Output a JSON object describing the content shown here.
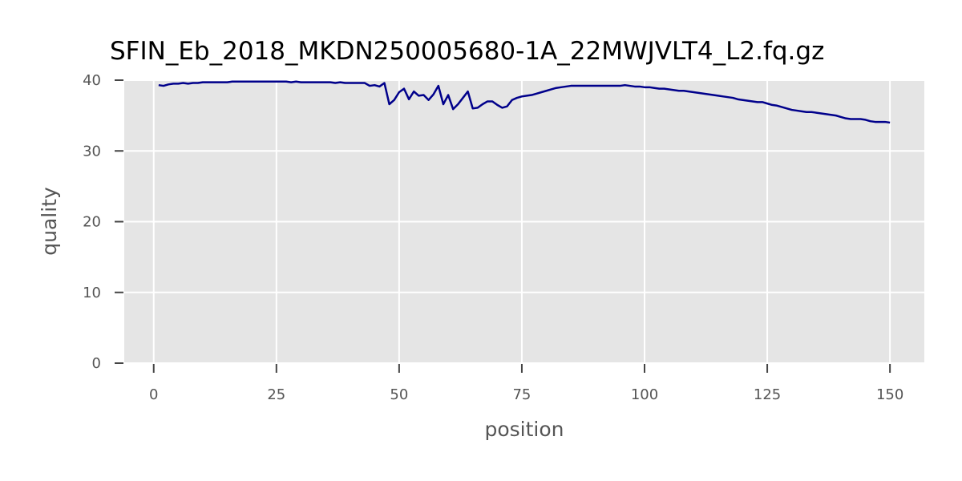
{
  "chart_data": {
    "type": "line",
    "title": "SFIN_Eb_2018_MKDN250005680-1A_22MWJVLT4_L2.fq.gz",
    "xlabel": "position",
    "ylabel": "quality",
    "xlim": [
      -6,
      157
    ],
    "ylim": [
      0,
      40
    ],
    "xticks": [
      0,
      25,
      50,
      75,
      100,
      125,
      150
    ],
    "yticks": [
      0,
      10,
      20,
      30,
      40
    ],
    "grid": true,
    "legend": "none",
    "line_color": "#00008b",
    "panel_color": "#e5e5e5",
    "series": [
      {
        "x": [
          1,
          2,
          3,
          4,
          5,
          6,
          7,
          8,
          9,
          10,
          11,
          12,
          13,
          14,
          15,
          16,
          17,
          18,
          19,
          20,
          21,
          22,
          23,
          24,
          25,
          26,
          27,
          28,
          29,
          30,
          31,
          32,
          33,
          34,
          35,
          36,
          37,
          38,
          39,
          40,
          41,
          42,
          43,
          44,
          45,
          46,
          47,
          48,
          49,
          50,
          51,
          52,
          53,
          54,
          55,
          56,
          57,
          58,
          59,
          60,
          61,
          62,
          63,
          64,
          65,
          66,
          67,
          68,
          69,
          70,
          71,
          72,
          73,
          74,
          75,
          76,
          77,
          78,
          79,
          80,
          81,
          82,
          83,
          84,
          85,
          86,
          87,
          88,
          89,
          90,
          91,
          92,
          93,
          94,
          95,
          96,
          97,
          98,
          99,
          100,
          101,
          102,
          103,
          104,
          105,
          106,
          107,
          108,
          109,
          110,
          111,
          112,
          113,
          114,
          115,
          116,
          117,
          118,
          119,
          120,
          121,
          122,
          123,
          124,
          125,
          126,
          127,
          128,
          129,
          130,
          131,
          132,
          133,
          134,
          135,
          136,
          137,
          138,
          139,
          140,
          141,
          142,
          143,
          144,
          145,
          146,
          147,
          148,
          149,
          150
        ],
        "y": [
          39.3,
          39.2,
          39.4,
          39.5,
          39.5,
          39.6,
          39.5,
          39.6,
          39.6,
          39.7,
          39.7,
          39.7,
          39.7,
          39.7,
          39.7,
          39.8,
          39.8,
          39.8,
          39.8,
          39.8,
          39.8,
          39.8,
          39.8,
          39.8,
          39.8,
          39.8,
          39.8,
          39.7,
          39.8,
          39.7,
          39.7,
          39.7,
          39.7,
          39.7,
          39.7,
          39.7,
          39.6,
          39.7,
          39.6,
          39.6,
          39.6,
          39.6,
          39.6,
          39.2,
          39.3,
          39.1,
          39.6,
          36.6,
          37.2,
          38.3,
          38.8,
          37.3,
          38.4,
          37.8,
          37.9,
          37.2,
          38.0,
          39.2,
          36.6,
          37.9,
          35.9,
          36.6,
          37.5,
          38.4,
          36.0,
          36.1,
          36.6,
          37.0,
          37.0,
          36.5,
          36.1,
          36.3,
          37.2,
          37.5,
          37.7,
          37.8,
          37.9,
          38.1,
          38.3,
          38.5,
          38.7,
          38.9,
          39.0,
          39.1,
          39.2,
          39.2,
          39.2,
          39.2,
          39.2,
          39.2,
          39.2,
          39.2,
          39.2,
          39.2,
          39.2,
          39.3,
          39.2,
          39.1,
          39.1,
          39.0,
          39.0,
          38.9,
          38.8,
          38.8,
          38.7,
          38.6,
          38.5,
          38.5,
          38.4,
          38.3,
          38.2,
          38.1,
          38.0,
          37.9,
          37.8,
          37.7,
          37.6,
          37.5,
          37.3,
          37.2,
          37.1,
          37.0,
          36.9,
          36.9,
          36.7,
          36.5,
          36.4,
          36.2,
          36.0,
          35.8,
          35.7,
          35.6,
          35.5,
          35.5,
          35.4,
          35.3,
          35.2,
          35.1,
          35.0,
          34.8,
          34.6,
          34.5,
          34.5,
          34.5,
          34.4,
          34.2,
          34.1,
          34.1,
          34.1,
          34.0
        ]
      }
    ]
  }
}
